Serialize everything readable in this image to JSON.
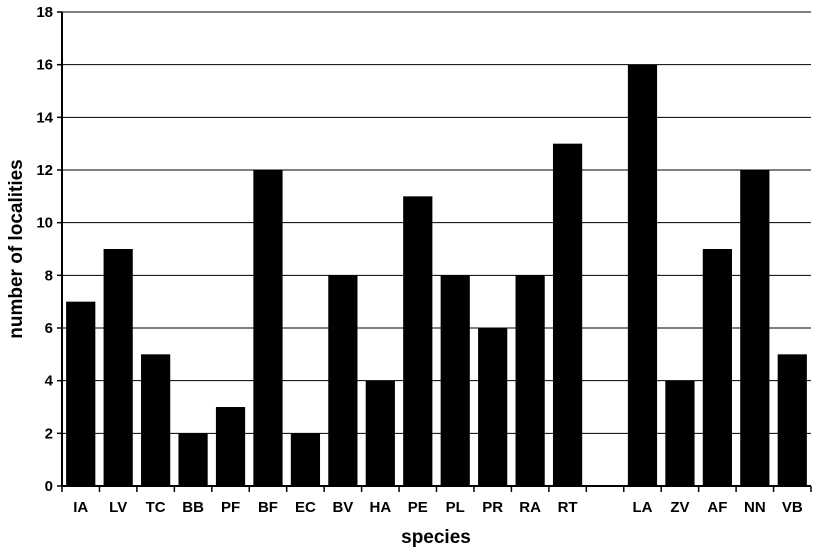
{
  "chart_data": {
    "type": "bar",
    "title": "",
    "xlabel": "species",
    "ylabel": "number of localities",
    "ylim": [
      0,
      18
    ],
    "yticks": [
      0,
      2,
      4,
      6,
      8,
      10,
      12,
      14,
      16,
      18
    ],
    "grid": true,
    "categories": [
      "IA",
      "LV",
      "TC",
      "BB",
      "PF",
      "BF",
      "EC",
      "BV",
      "HA",
      "PE",
      "PL",
      "PR",
      "RA",
      "RT",
      "",
      "LA",
      "ZV",
      "AF",
      "NN",
      "VB"
    ],
    "values": [
      7,
      9,
      5,
      2,
      3,
      12,
      2,
      8,
      4,
      11,
      8,
      6,
      8,
      13,
      null,
      16,
      4,
      9,
      12,
      5
    ],
    "bar_color": "#000000"
  }
}
